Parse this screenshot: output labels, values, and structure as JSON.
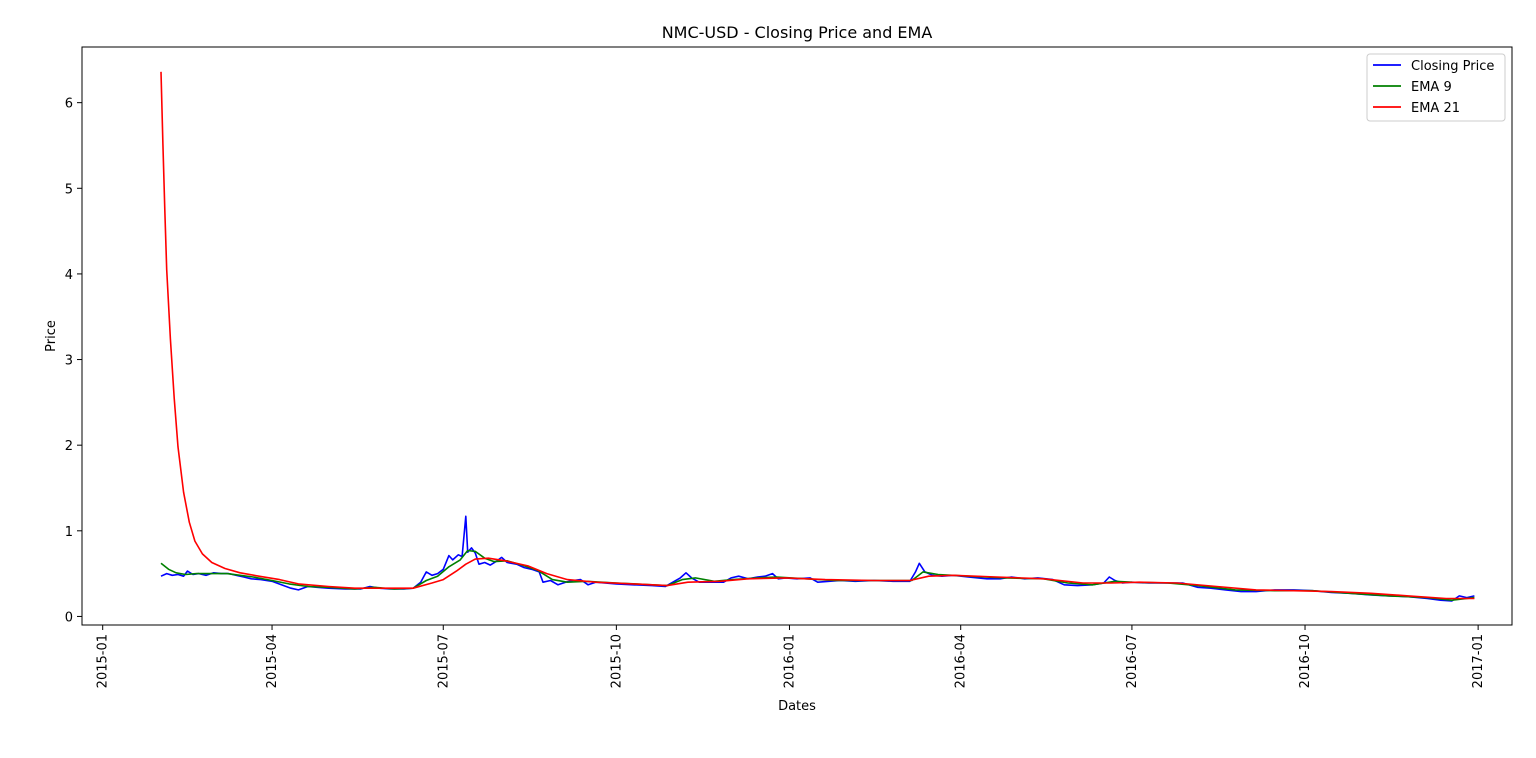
{
  "chart_data": {
    "type": "line",
    "title": "NMC-USD - Closing Price and EMA",
    "xlabel": "Dates",
    "ylabel": "Price",
    "xlim": [
      "2014-12-21",
      "2017-01-19"
    ],
    "ylim": [
      -0.1,
      6.65
    ],
    "x_ticks": [
      "2015-01",
      "2015-04",
      "2015-07",
      "2015-10",
      "2016-01",
      "2016-04",
      "2016-07",
      "2016-10",
      "2017-01"
    ],
    "y_ticks": [
      0,
      1,
      2,
      3,
      4,
      5,
      6
    ],
    "legend_position": "top-right",
    "grid": false,
    "series": [
      {
        "name": "Closing Price",
        "color": "#0000ff",
        "points": [
          [
            "2015-02-01",
            0.47
          ],
          [
            "2015-02-04",
            0.5
          ],
          [
            "2015-02-07",
            0.48
          ],
          [
            "2015-02-10",
            0.49
          ],
          [
            "2015-02-13",
            0.47
          ],
          [
            "2015-02-15",
            0.53
          ],
          [
            "2015-02-18",
            0.49
          ],
          [
            "2015-02-21",
            0.5
          ],
          [
            "2015-02-25",
            0.48
          ],
          [
            "2015-03-01",
            0.51
          ],
          [
            "2015-03-05",
            0.5
          ],
          [
            "2015-03-09",
            0.5
          ],
          [
            "2015-03-13",
            0.48
          ],
          [
            "2015-03-17",
            0.46
          ],
          [
            "2015-03-21",
            0.44
          ],
          [
            "2015-03-26",
            0.43
          ],
          [
            "2015-04-01",
            0.41
          ],
          [
            "2015-04-06",
            0.37
          ],
          [
            "2015-04-11",
            0.33
          ],
          [
            "2015-04-15",
            0.31
          ],
          [
            "2015-04-20",
            0.35
          ],
          [
            "2015-04-25",
            0.34
          ],
          [
            "2015-05-01",
            0.33
          ],
          [
            "2015-05-10",
            0.32
          ],
          [
            "2015-05-18",
            0.32
          ],
          [
            "2015-05-23",
            0.35
          ],
          [
            "2015-05-28",
            0.33
          ],
          [
            "2015-06-03",
            0.32
          ],
          [
            "2015-06-10",
            0.32
          ],
          [
            "2015-06-15",
            0.33
          ],
          [
            "2015-06-19",
            0.4
          ],
          [
            "2015-06-22",
            0.52
          ],
          [
            "2015-06-25",
            0.48
          ],
          [
            "2015-06-28",
            0.5
          ],
          [
            "2015-07-01",
            0.55
          ],
          [
            "2015-07-04",
            0.71
          ],
          [
            "2015-07-06",
            0.66
          ],
          [
            "2015-07-09",
            0.72
          ],
          [
            "2015-07-11",
            0.7
          ],
          [
            "2015-07-13",
            1.17
          ],
          [
            "2015-07-14",
            0.75
          ],
          [
            "2015-07-16",
            0.8
          ],
          [
            "2015-07-18",
            0.74
          ],
          [
            "2015-07-20",
            0.61
          ],
          [
            "2015-07-23",
            0.63
          ],
          [
            "2015-07-26",
            0.6
          ],
          [
            "2015-07-29",
            0.64
          ],
          [
            "2015-08-01",
            0.69
          ],
          [
            "2015-08-04",
            0.63
          ],
          [
            "2015-08-09",
            0.61
          ],
          [
            "2015-08-13",
            0.57
          ],
          [
            "2015-08-17",
            0.55
          ],
          [
            "2015-08-21",
            0.52
          ],
          [
            "2015-08-23",
            0.4
          ],
          [
            "2015-08-27",
            0.42
          ],
          [
            "2015-08-31",
            0.37
          ],
          [
            "2015-09-04",
            0.4
          ],
          [
            "2015-09-08",
            0.42
          ],
          [
            "2015-09-12",
            0.43
          ],
          [
            "2015-09-16",
            0.37
          ],
          [
            "2015-09-20",
            0.4
          ],
          [
            "2015-10-01",
            0.38
          ],
          [
            "2015-10-10",
            0.37
          ],
          [
            "2015-10-20",
            0.36
          ],
          [
            "2015-10-27",
            0.35
          ],
          [
            "2015-10-31",
            0.4
          ],
          [
            "2015-11-04",
            0.45
          ],
          [
            "2015-11-07",
            0.51
          ],
          [
            "2015-11-10",
            0.45
          ],
          [
            "2015-11-14",
            0.4
          ],
          [
            "2015-11-20",
            0.4
          ],
          [
            "2015-11-27",
            0.4
          ],
          [
            "2015-12-01",
            0.45
          ],
          [
            "2015-12-05",
            0.47
          ],
          [
            "2015-12-10",
            0.44
          ],
          [
            "2015-12-15",
            0.46
          ],
          [
            "2015-12-19",
            0.47
          ],
          [
            "2015-12-23",
            0.5
          ],
          [
            "2015-12-26",
            0.44
          ],
          [
            "2015-12-30",
            0.45
          ],
          [
            "2016-01-05",
            0.44
          ],
          [
            "2016-01-12",
            0.45
          ],
          [
            "2016-01-16",
            0.4
          ],
          [
            "2016-01-22",
            0.41
          ],
          [
            "2016-01-28",
            0.42
          ],
          [
            "2016-02-05",
            0.41
          ],
          [
            "2016-02-15",
            0.42
          ],
          [
            "2016-02-25",
            0.41
          ],
          [
            "2016-03-05",
            0.41
          ],
          [
            "2016-03-08",
            0.52
          ],
          [
            "2016-03-10",
            0.62
          ],
          [
            "2016-03-13",
            0.52
          ],
          [
            "2016-03-17",
            0.48
          ],
          [
            "2016-03-22",
            0.47
          ],
          [
            "2016-03-28",
            0.48
          ],
          [
            "2016-04-05",
            0.46
          ],
          [
            "2016-04-15",
            0.44
          ],
          [
            "2016-04-22",
            0.44
          ],
          [
            "2016-04-28",
            0.46
          ],
          [
            "2016-05-05",
            0.44
          ],
          [
            "2016-05-12",
            0.45
          ],
          [
            "2016-05-20",
            0.43
          ],
          [
            "2016-05-26",
            0.37
          ],
          [
            "2016-06-02",
            0.36
          ],
          [
            "2016-06-10",
            0.37
          ],
          [
            "2016-06-16",
            0.39
          ],
          [
            "2016-06-19",
            0.46
          ],
          [
            "2016-06-22",
            0.42
          ],
          [
            "2016-06-26",
            0.39
          ],
          [
            "2016-07-01",
            0.4
          ],
          [
            "2016-07-10",
            0.39
          ],
          [
            "2016-07-20",
            0.39
          ],
          [
            "2016-07-28",
            0.39
          ],
          [
            "2016-08-05",
            0.34
          ],
          [
            "2016-08-12",
            0.33
          ],
          [
            "2016-08-20",
            0.31
          ],
          [
            "2016-08-28",
            0.29
          ],
          [
            "2016-09-05",
            0.29
          ],
          [
            "2016-09-15",
            0.31
          ],
          [
            "2016-09-25",
            0.31
          ],
          [
            "2016-10-05",
            0.3
          ],
          [
            "2016-10-15",
            0.28
          ],
          [
            "2016-10-25",
            0.27
          ],
          [
            "2016-11-05",
            0.25
          ],
          [
            "2016-11-15",
            0.24
          ],
          [
            "2016-11-25",
            0.23
          ],
          [
            "2016-12-05",
            0.21
          ],
          [
            "2016-12-12",
            0.19
          ],
          [
            "2016-12-18",
            0.18
          ],
          [
            "2016-12-22",
            0.24
          ],
          [
            "2016-12-26",
            0.22
          ],
          [
            "2016-12-30",
            0.24
          ]
        ]
      },
      {
        "name": "EMA 9",
        "color": "#008000",
        "points": [
          [
            "2015-02-01",
            0.62
          ],
          [
            "2015-02-05",
            0.55
          ],
          [
            "2015-02-09",
            0.51
          ],
          [
            "2015-02-14",
            0.49
          ],
          [
            "2015-02-20",
            0.5
          ],
          [
            "2015-02-28",
            0.5
          ],
          [
            "2015-03-08",
            0.5
          ],
          [
            "2015-03-15",
            0.48
          ],
          [
            "2015-03-22",
            0.46
          ],
          [
            "2015-04-01",
            0.42
          ],
          [
            "2015-04-10",
            0.38
          ],
          [
            "2015-04-20",
            0.35
          ],
          [
            "2015-05-01",
            0.34
          ],
          [
            "2015-05-15",
            0.32
          ],
          [
            "2015-05-25",
            0.34
          ],
          [
            "2015-06-05",
            0.32
          ],
          [
            "2015-06-15",
            0.33
          ],
          [
            "2015-06-22",
            0.42
          ],
          [
            "2015-06-28",
            0.47
          ],
          [
            "2015-07-04",
            0.58
          ],
          [
            "2015-07-10",
            0.66
          ],
          [
            "2015-07-14",
            0.77
          ],
          [
            "2015-07-18",
            0.76
          ],
          [
            "2015-07-23",
            0.68
          ],
          [
            "2015-07-28",
            0.64
          ],
          [
            "2015-08-04",
            0.65
          ],
          [
            "2015-08-12",
            0.6
          ],
          [
            "2015-08-20",
            0.54
          ],
          [
            "2015-08-28",
            0.43
          ],
          [
            "2015-09-05",
            0.4
          ],
          [
            "2015-09-15",
            0.41
          ],
          [
            "2015-10-01",
            0.39
          ],
          [
            "2015-10-20",
            0.37
          ],
          [
            "2015-10-28",
            0.36
          ],
          [
            "2015-11-05",
            0.43
          ],
          [
            "2015-11-12",
            0.45
          ],
          [
            "2015-11-22",
            0.41
          ],
          [
            "2015-12-02",
            0.43
          ],
          [
            "2015-12-15",
            0.45
          ],
          [
            "2015-12-25",
            0.46
          ],
          [
            "2016-01-10",
            0.44
          ],
          [
            "2016-01-25",
            0.42
          ],
          [
            "2016-02-15",
            0.42
          ],
          [
            "2016-03-06",
            0.42
          ],
          [
            "2016-03-12",
            0.52
          ],
          [
            "2016-03-20",
            0.49
          ],
          [
            "2016-04-05",
            0.47
          ],
          [
            "2016-04-25",
            0.45
          ],
          [
            "2016-05-15",
            0.44
          ],
          [
            "2016-05-28",
            0.39
          ],
          [
            "2016-06-10",
            0.37
          ],
          [
            "2016-06-22",
            0.41
          ],
          [
            "2016-07-01",
            0.4
          ],
          [
            "2016-07-20",
            0.39
          ],
          [
            "2016-08-05",
            0.36
          ],
          [
            "2016-08-25",
            0.31
          ],
          [
            "2016-09-15",
            0.3
          ],
          [
            "2016-10-05",
            0.3
          ],
          [
            "2016-10-25",
            0.27
          ],
          [
            "2016-11-15",
            0.24
          ],
          [
            "2016-12-05",
            0.22
          ],
          [
            "2016-12-18",
            0.19
          ],
          [
            "2016-12-30",
            0.22
          ]
        ]
      },
      {
        "name": "EMA 21",
        "color": "#ff0000",
        "points": [
          [
            "2015-02-01",
            6.36
          ],
          [
            "2015-02-02",
            5.52
          ],
          [
            "2015-02-03",
            4.75
          ],
          [
            "2015-02-04",
            4.05
          ],
          [
            "2015-02-06",
            3.24
          ],
          [
            "2015-02-08",
            2.55
          ],
          [
            "2015-02-10",
            1.98
          ],
          [
            "2015-02-13",
            1.45
          ],
          [
            "2015-02-16",
            1.1
          ],
          [
            "2015-02-19",
            0.88
          ],
          [
            "2015-02-23",
            0.73
          ],
          [
            "2015-02-28",
            0.63
          ],
          [
            "2015-03-07",
            0.56
          ],
          [
            "2015-03-15",
            0.51
          ],
          [
            "2015-03-25",
            0.47
          ],
          [
            "2015-04-05",
            0.43
          ],
          [
            "2015-04-15",
            0.38
          ],
          [
            "2015-05-01",
            0.35
          ],
          [
            "2015-05-15",
            0.33
          ],
          [
            "2015-06-01",
            0.33
          ],
          [
            "2015-06-15",
            0.33
          ],
          [
            "2015-06-25",
            0.39
          ],
          [
            "2015-07-01",
            0.43
          ],
          [
            "2015-07-08",
            0.53
          ],
          [
            "2015-07-13",
            0.61
          ],
          [
            "2015-07-18",
            0.67
          ],
          [
            "2015-07-25",
            0.68
          ],
          [
            "2015-08-03",
            0.65
          ],
          [
            "2015-08-15",
            0.59
          ],
          [
            "2015-08-25",
            0.5
          ],
          [
            "2015-09-05",
            0.43
          ],
          [
            "2015-09-20",
            0.4
          ],
          [
            "2015-10-10",
            0.38
          ],
          [
            "2015-10-28",
            0.36
          ],
          [
            "2015-11-08",
            0.4
          ],
          [
            "2015-11-25",
            0.41
          ],
          [
            "2015-12-10",
            0.44
          ],
          [
            "2015-12-30",
            0.45
          ],
          [
            "2016-01-20",
            0.43
          ],
          [
            "2016-02-15",
            0.42
          ],
          [
            "2016-03-05",
            0.42
          ],
          [
            "2016-03-15",
            0.47
          ],
          [
            "2016-03-28",
            0.48
          ],
          [
            "2016-04-20",
            0.46
          ],
          [
            "2016-05-15",
            0.44
          ],
          [
            "2016-06-05",
            0.39
          ],
          [
            "2016-06-20",
            0.39
          ],
          [
            "2016-07-05",
            0.4
          ],
          [
            "2016-07-25",
            0.39
          ],
          [
            "2016-08-15",
            0.35
          ],
          [
            "2016-09-05",
            0.31
          ],
          [
            "2016-09-25",
            0.3
          ],
          [
            "2016-10-15",
            0.29
          ],
          [
            "2016-11-05",
            0.27
          ],
          [
            "2016-11-25",
            0.24
          ],
          [
            "2016-12-15",
            0.21
          ],
          [
            "2016-12-30",
            0.21
          ]
        ]
      }
    ]
  }
}
